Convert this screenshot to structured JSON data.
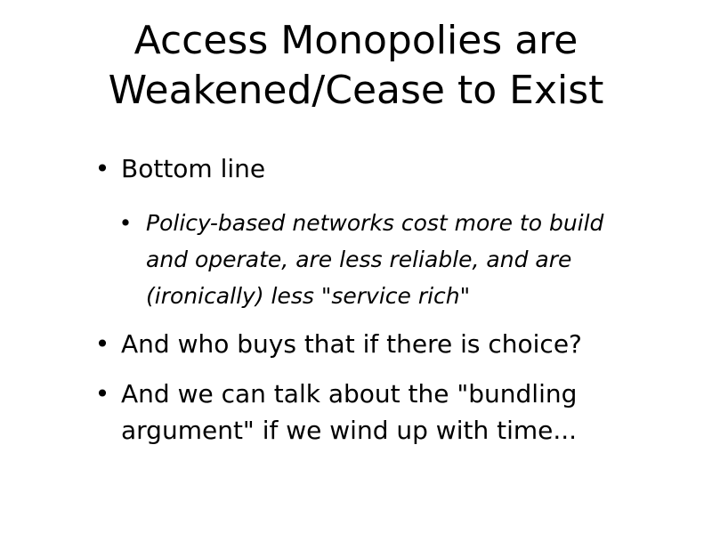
{
  "slide": {
    "title_lines": [
      "Access Monopolies are",
      "Weakened/Cease to Exist"
    ],
    "bullet_symbol": "•",
    "bullets": [
      {
        "text": "Bottom line",
        "sub": [
          {
            "lines": [
              "Policy-based networks cost more to build",
              "and operate, are less reliable, and are",
              "(ironically) less \"service rich\""
            ]
          }
        ]
      },
      {
        "text": "And who buys that if there is choice?"
      },
      {
        "lines": [
          "And we can talk about the \"bundling",
          "argument\" if we wind up with time..."
        ]
      }
    ]
  }
}
